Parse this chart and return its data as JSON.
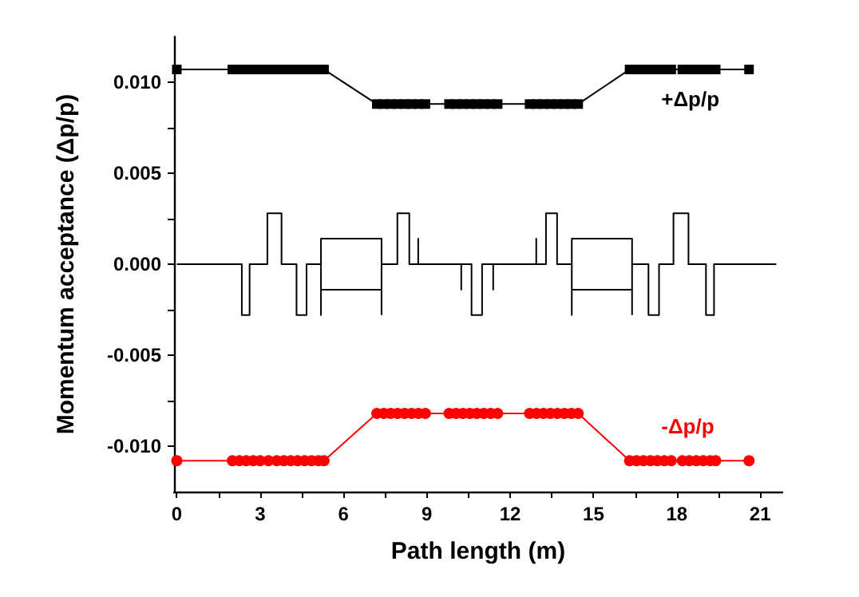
{
  "chart_data": {
    "type": "line",
    "xlabel": "Path length (m)",
    "ylabel": "Momentum acceptance (Δp/p)",
    "x": [
      0,
      2.0,
      2.25,
      2.5,
      2.75,
      3.0,
      3.3,
      3.6,
      3.85,
      4.1,
      4.35,
      4.6,
      4.85,
      5.1,
      5.3,
      7.2,
      7.45,
      7.7,
      7.95,
      8.2,
      8.45,
      8.7,
      8.95,
      9.8,
      10.05,
      10.3,
      10.55,
      10.8,
      11.05,
      11.3,
      11.55,
      12.7,
      12.95,
      13.2,
      13.45,
      13.7,
      13.95,
      14.2,
      14.45,
      16.3,
      16.55,
      16.8,
      17.05,
      17.3,
      17.55,
      17.8,
      18.2,
      18.45,
      18.7,
      18.95,
      19.2,
      19.4,
      20.6
    ],
    "series": [
      {
        "name": "+Δp/p",
        "color": "#000000",
        "marker": "square",
        "values": [
          0.0107,
          0.0107,
          0.0107,
          0.0107,
          0.0107,
          0.0107,
          0.0107,
          0.0107,
          0.0107,
          0.0107,
          0.0107,
          0.0107,
          0.0107,
          0.0107,
          0.0107,
          0.0088,
          0.0088,
          0.0088,
          0.0088,
          0.0088,
          0.0088,
          0.0088,
          0.0088,
          0.0088,
          0.0088,
          0.0088,
          0.0088,
          0.0088,
          0.0088,
          0.0088,
          0.0088,
          0.0088,
          0.0088,
          0.0088,
          0.0088,
          0.0088,
          0.0088,
          0.0088,
          0.0088,
          0.0107,
          0.0107,
          0.0107,
          0.0107,
          0.0107,
          0.0107,
          0.0107,
          0.0107,
          0.0107,
          0.0107,
          0.0107,
          0.0107,
          0.0107,
          0.0107
        ]
      },
      {
        "name": "-Δp/p",
        "color": "#ff0000",
        "marker": "circle",
        "values": [
          -0.0108,
          -0.0108,
          -0.0108,
          -0.0108,
          -0.0108,
          -0.0108,
          -0.0108,
          -0.0108,
          -0.0108,
          -0.0108,
          -0.0108,
          -0.0108,
          -0.0108,
          -0.0108,
          -0.0108,
          -0.0082,
          -0.0082,
          -0.0082,
          -0.0082,
          -0.0082,
          -0.0082,
          -0.0082,
          -0.0082,
          -0.0082,
          -0.0082,
          -0.0082,
          -0.0082,
          -0.0082,
          -0.0082,
          -0.0082,
          -0.0082,
          -0.0082,
          -0.0082,
          -0.0082,
          -0.0082,
          -0.0082,
          -0.0082,
          -0.0082,
          -0.0082,
          -0.0108,
          -0.0108,
          -0.0108,
          -0.0108,
          -0.0108,
          -0.0108,
          -0.0108,
          -0.0108,
          -0.0108,
          -0.0108,
          -0.0108,
          -0.0108,
          -0.0108,
          -0.0108
        ]
      },
      {
        "color": "#000000",
        "marker": "none",
        "x": [
          0,
          2.34,
          2.34,
          2.62,
          2.62,
          3.26,
          3.26,
          3.77,
          3.77,
          4.31,
          4.31,
          4.67,
          4.67,
          5.19,
          5.19,
          7.37,
          7.37,
          7.94,
          7.94,
          8.37,
          8.37,
          8.69,
          8.69,
          8.69,
          10.24,
          10.24,
          10.24,
          10.61,
          10.61,
          10.99,
          10.99,
          11.39,
          11.39,
          11.39,
          12.94,
          12.94,
          12.94,
          13.29,
          13.29,
          13.69,
          13.69,
          14.22,
          14.22,
          16.39,
          16.39,
          16.98,
          16.98,
          17.36,
          17.36,
          17.88,
          17.88,
          18.42,
          18.42,
          19.05,
          19.05,
          19.34,
          19.34,
          21.58
        ],
        "values": [
          0,
          0,
          -0.0028,
          -0.0028,
          0,
          0,
          0.0028,
          0.0028,
          0,
          0,
          -0.0028,
          -0.0028,
          0,
          0,
          0.0014,
          0.0014,
          0,
          0,
          0.0028,
          0.0028,
          0,
          0,
          0.0014,
          0,
          0,
          -0.0014,
          0,
          0,
          -0.0028,
          -0.0028,
          0,
          0,
          -0.0014,
          0,
          0,
          0.0014,
          0,
          0,
          0.0028,
          0.0028,
          0,
          0,
          0.0014,
          0.0014,
          0,
          0,
          -0.0028,
          -0.0028,
          0,
          0,
          0.0028,
          0.0028,
          0,
          0,
          -0.0028,
          -0.0028,
          0,
          0
        ]
      },
      {
        "color": "#000000",
        "marker": "none",
        "x": [
          5.19,
          5.19,
          5.19,
          7.37,
          7.37,
          7.37
        ],
        "values": [
          0,
          -0.0028,
          -0.0014,
          -0.0014,
          0,
          -0.0028
        ]
      },
      {
        "color": "#000000",
        "marker": "none",
        "x": [
          14.22,
          14.22,
          14.22,
          16.39,
          16.39,
          16.39
        ],
        "values": [
          0,
          -0.0028,
          -0.0014,
          -0.0014,
          0,
          -0.0028
        ]
      }
    ],
    "xlim": [
      -0.1,
      21.8
    ],
    "xticks": [
      0,
      3,
      6,
      9,
      12,
      15,
      18,
      21
    ],
    "ylim": [
      -0.0125,
      0.0125
    ],
    "yticks": [
      {
        "value": -0.01,
        "label": "-0.010"
      },
      {
        "value": -0.005,
        "label": "-0.005"
      },
      {
        "value": 0,
        "label": "0.000"
      },
      {
        "value": 0.005,
        "label": "0.005"
      },
      {
        "value": 0.01,
        "label": "0.010"
      }
    ],
    "grid": false,
    "legend": false
  }
}
